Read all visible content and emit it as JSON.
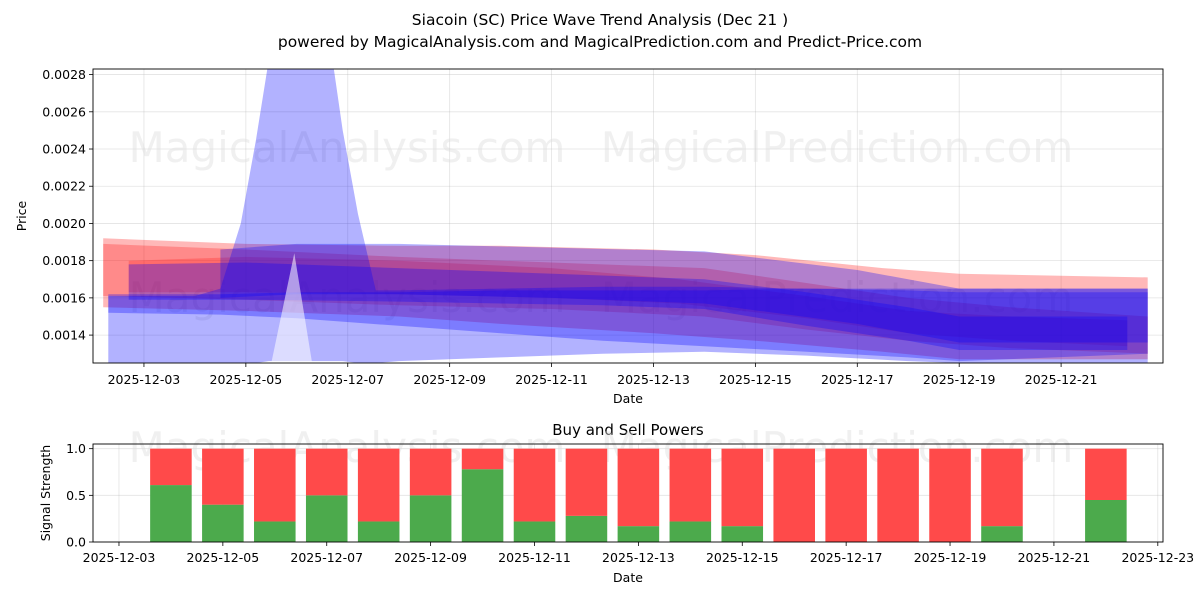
{
  "chart_data": [
    {
      "type": "area",
      "title": "Siacoin (SC) Price Wave Trend Analysis (Dec 21 )",
      "subtitle": "powered by MagicalAnalysis.com and MagicalPrediction.com and Predict-Price.com",
      "xlabel": "Date",
      "ylabel": "Price",
      "xlim": [
        "2025-12-02",
        "2025-12-23"
      ],
      "ylim": [
        0.00125,
        0.00283
      ],
      "x_ticks": [
        "2025-12-03",
        "2025-12-05",
        "2025-12-07",
        "2025-12-09",
        "2025-12-11",
        "2025-12-13",
        "2025-12-15",
        "2025-12-17",
        "2025-12-19",
        "2025-12-21"
      ],
      "y_ticks": [
        "0.0014",
        "0.0016",
        "0.0018",
        "0.0020",
        "0.0022",
        "0.0024",
        "0.0026",
        "0.0028"
      ],
      "watermarks": [
        "MagicalAnalysis.com",
        "MagicalPrediction.com"
      ],
      "bands": [
        {
          "color": "#ff0000",
          "opacity": 0.28,
          "x": [
            "2025-12-02.2",
            "2025-12-05",
            "2025-12-08",
            "2025-12-10",
            "2025-12-13",
            "2025-12-15",
            "2025-12-17.5",
            "2025-12-19",
            "2025-12-22.7"
          ],
          "upper": [
            0.00192,
            0.00189,
            0.00188,
            0.00188,
            0.00186,
            0.00183,
            0.00176,
            0.00173,
            0.00171
          ],
          "lower": [
            0.00155,
            0.00153,
            0.0015,
            0.00146,
            0.00141,
            0.00137,
            0.00131,
            0.00127,
            0.00127
          ]
        },
        {
          "color": "#ff0000",
          "opacity": 0.25,
          "x": [
            "2025-12-02.2",
            "2025-12-05",
            "2025-12-08",
            "2025-12-11",
            "2025-12-14",
            "2025-12-16",
            "2025-12-18",
            "2025-12-20",
            "2025-12-22.7"
          ],
          "upper": [
            0.00189,
            0.00186,
            0.00182,
            0.00179,
            0.00176,
            0.00168,
            0.0016,
            0.00155,
            0.0015
          ],
          "lower": [
            0.00161,
            0.00159,
            0.00156,
            0.00154,
            0.0015,
            0.00143,
            0.00137,
            0.00133,
            0.0013
          ]
        },
        {
          "color": "#ff0000",
          "opacity": 0.22,
          "x": [
            "2025-12-02.7",
            "2025-12-05",
            "2025-12-08",
            "2025-12-11",
            "2025-12-13.5",
            "2025-12-16",
            "2025-12-18",
            "2025-12-20",
            "2025-12-22.3"
          ],
          "upper": [
            0.0018,
            0.00182,
            0.0018,
            0.00176,
            0.0017,
            0.00161,
            0.00153,
            0.0015,
            0.00148
          ],
          "lower": [
            0.00163,
            0.00163,
            0.00162,
            0.0016,
            0.00157,
            0.00149,
            0.00141,
            0.00137,
            0.00134
          ]
        },
        {
          "color": "#0000ff",
          "opacity": 0.3,
          "x": [
            "2025-12-02.3",
            "2025-12-04.5",
            "2025-12-06",
            "2025-12-08",
            "2025-12-10",
            "2025-12-12",
            "2025-12-14",
            "2025-12-16",
            "2025-12-18",
            "2025-12-19",
            "2025-12-22.7"
          ],
          "upper": [
            0.00162,
            0.00162,
            0.00163,
            0.00163,
            0.00164,
            0.00164,
            0.00164,
            0.00165,
            0.00165,
            0.00165,
            0.00165
          ],
          "lower": [
            0.00152,
            0.00151,
            0.00149,
            0.00145,
            0.00141,
            0.00137,
            0.00134,
            0.00131,
            0.00128,
            0.00126,
            0.0013
          ]
        },
        {
          "color": "#0000ff",
          "opacity": 0.3,
          "x": [
            "2025-12-02.7",
            "2025-12-05",
            "2025-12-08",
            "2025-12-10",
            "2025-12-12",
            "2025-12-14",
            "2025-12-16",
            "2025-12-18",
            "2025-12-19",
            "2025-12-22.3"
          ],
          "upper": [
            0.00178,
            0.00179,
            0.00176,
            0.00174,
            0.00172,
            0.0017,
            0.00163,
            0.00155,
            0.0015,
            0.0015
          ],
          "lower": [
            0.00159,
            0.00159,
            0.00158,
            0.00157,
            0.00156,
            0.00154,
            0.00145,
            0.00137,
            0.00132,
            0.00132
          ]
        },
        {
          "color": "#0000ff",
          "opacity": 0.3,
          "x": [
            "2025-12-04.5",
            "2025-12-06",
            "2025-12-08",
            "2025-12-11",
            "2025-12-14",
            "2025-12-17",
            "2025-12-19",
            "2025-12-22.7"
          ],
          "upper": [
            0.00186,
            0.00189,
            0.00189,
            0.00187,
            0.00185,
            0.00175,
            0.00165,
            0.00165
          ],
          "lower": [
            0.0016,
            0.00162,
            0.00162,
            0.0016,
            0.00157,
            0.00146,
            0.00136,
            0.00136
          ]
        },
        {
          "color": "#0000ff",
          "opacity": 0.3,
          "x": [
            "2025-12-02.3",
            "2025-12-04.0",
            "2025-12-04.5",
            "2025-12-04.9",
            "2025-12-05.2",
            "2025-12-05.45",
            "2025-12-06.7",
            "2025-12-06.9",
            "2025-12-07.2",
            "2025-12-07.55",
            "2025-12-08",
            "2025-12-10",
            "2025-12-12",
            "2025-12-14",
            "2025-12-16",
            "2025-12-18",
            "2025-12-19",
            "2025-12-22.7"
          ],
          "upper": [
            0.00161,
            0.00161,
            0.00165,
            0.002,
            0.00245,
            0.00288,
            0.00288,
            0.0025,
            0.00205,
            0.00164,
            0.00164,
            0.00165,
            0.00166,
            0.00166,
            0.00165,
            0.00164,
            0.00163,
            0.00163
          ],
          "lower": [
            0.00125,
            0.00125,
            0.00125,
            0.00125,
            0.00125,
            0.00126,
            0.00126,
            0.00126,
            0.00125,
            0.00125,
            0.00126,
            0.00128,
            0.0013,
            0.00131,
            0.00129,
            0.00126,
            0.00125,
            0.00125
          ],
          "notch": {
            "x": [
              "2025-12-05.5",
              "2025-12-05.95",
              "2025-12-06.3"
            ],
            "y": [
              0.00125,
              0.00184,
              0.00125
            ]
          }
        }
      ]
    },
    {
      "type": "bar",
      "title": "Buy and Sell Powers",
      "xlabel": "Date",
      "ylabel": "Signal Strength",
      "xlim": [
        "2025-12-02.5",
        "2025-12-23.1"
      ],
      "ylim": [
        0,
        1.05
      ],
      "x_ticks": [
        "2025-12-03",
        "2025-12-05",
        "2025-12-07",
        "2025-12-09",
        "2025-12-11",
        "2025-12-13",
        "2025-12-15",
        "2025-12-17",
        "2025-12-19",
        "2025-12-21",
        "2025-12-23"
      ],
      "y_ticks": [
        "0.0",
        "0.5",
        "1.0"
      ],
      "watermarks": [
        "MagicalAnalysis.com",
        "MagicalPrediction.com"
      ],
      "buy_color": "#4caa4c",
      "sell_color": "#ff4a4a",
      "categories": [
        "2025-12-04",
        "2025-12-05",
        "2025-12-06",
        "2025-12-07",
        "2025-12-08",
        "2025-12-09",
        "2025-12-10",
        "2025-12-11",
        "2025-12-12",
        "2025-12-13",
        "2025-12-14",
        "2025-12-15",
        "2025-12-16",
        "2025-12-17",
        "2025-12-18",
        "2025-12-19",
        "2025-12-20",
        "2025-12-22"
      ],
      "series": [
        {
          "name": "Buy",
          "values": [
            0.61,
            0.4,
            0.22,
            0.5,
            0.22,
            0.5,
            0.78,
            0.22,
            0.28,
            0.17,
            0.22,
            0.17,
            0.0,
            0.0,
            0.0,
            0.0,
            0.17,
            0.45
          ]
        },
        {
          "name": "Sell",
          "values": [
            0.39,
            0.6,
            0.78,
            0.5,
            0.78,
            0.5,
            0.22,
            0.78,
            0.72,
            0.83,
            0.78,
            0.83,
            1.0,
            1.0,
            1.0,
            1.0,
            0.83,
            0.55
          ]
        }
      ]
    }
  ]
}
